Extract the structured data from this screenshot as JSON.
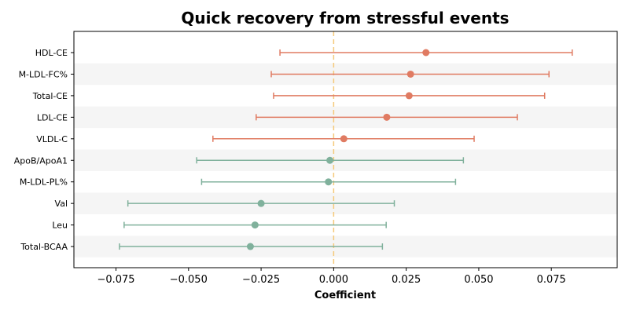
{
  "chart_data": {
    "type": "forest",
    "title": "Quick recovery from stressful events",
    "xlabel": "Coefficient",
    "ylabel": "",
    "xlim": [
      -0.0895,
      0.0977
    ],
    "x_ticks": [
      -0.075,
      -0.05,
      -0.025,
      0.0,
      0.025,
      0.05,
      0.075
    ],
    "x_tick_labels": [
      "−0.075",
      "−0.050",
      "−0.025",
      "0.000",
      "0.025",
      "0.050",
      "0.075"
    ],
    "reference_line": 0.0,
    "grid": false,
    "alternating_row_shading": true,
    "colors": {
      "positive": "#e07b62",
      "negative": "#80b19c",
      "reference_line": "#f5c97a",
      "row_shade": "#f5f5f5"
    },
    "rows": [
      {
        "label": "HDL-CE",
        "estimate": 0.0318,
        "lower": -0.0185,
        "upper": 0.0822
      },
      {
        "label": "M-LDL-FC%",
        "estimate": 0.0265,
        "lower": -0.0215,
        "upper": 0.0742
      },
      {
        "label": "Total-CE",
        "estimate": 0.026,
        "lower": -0.0207,
        "upper": 0.0727
      },
      {
        "label": "LDL-CE",
        "estimate": 0.0183,
        "lower": -0.0267,
        "upper": 0.0633
      },
      {
        "label": "VLDL-C",
        "estimate": 0.0035,
        "lower": -0.0416,
        "upper": 0.0484
      },
      {
        "label": "ApoB/ApoA1",
        "estimate": -0.0013,
        "lower": -0.0472,
        "upper": 0.0447
      },
      {
        "label": "M-LDL-PL%",
        "estimate": -0.0018,
        "lower": -0.0455,
        "upper": 0.042
      },
      {
        "label": "Val",
        "estimate": -0.025,
        "lower": -0.0709,
        "upper": 0.0209
      },
      {
        "label": "Leu",
        "estimate": -0.0271,
        "lower": -0.0722,
        "upper": 0.0181
      },
      {
        "label": "Total-BCAA",
        "estimate": -0.0287,
        "lower": -0.0738,
        "upper": 0.0168
      }
    ]
  }
}
